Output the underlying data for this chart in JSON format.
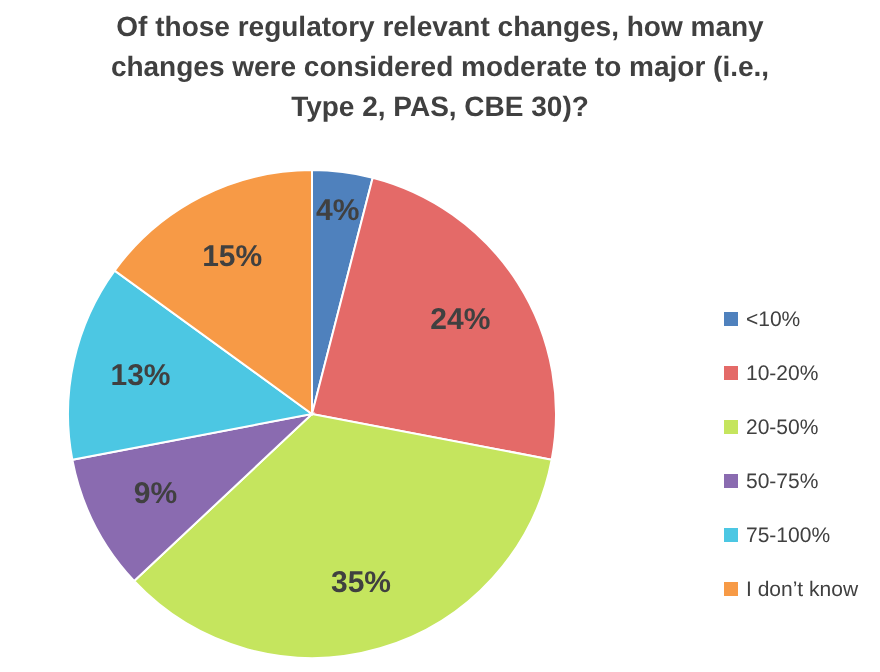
{
  "chart_data": {
    "type": "pie",
    "title": "Of those regulatory relevant changes, how many changes were considered moderate to major (i.e., Type 2, PAS, CBE 30)?",
    "categories": [
      "<10%",
      "10-20%",
      "20-50%",
      "50-75%",
      "75-100%",
      "I don’t know"
    ],
    "values": [
      4,
      24,
      35,
      9,
      13,
      15
    ],
    "colors": [
      "#4f81bd",
      "#e46a68",
      "#c5e55e",
      "#8a6bb0",
      "#4cc7e3",
      "#f79a46"
    ],
    "value_labels": [
      "4%",
      "24%",
      "35%",
      "9%",
      "13%",
      "15%"
    ],
    "legend": "right"
  }
}
